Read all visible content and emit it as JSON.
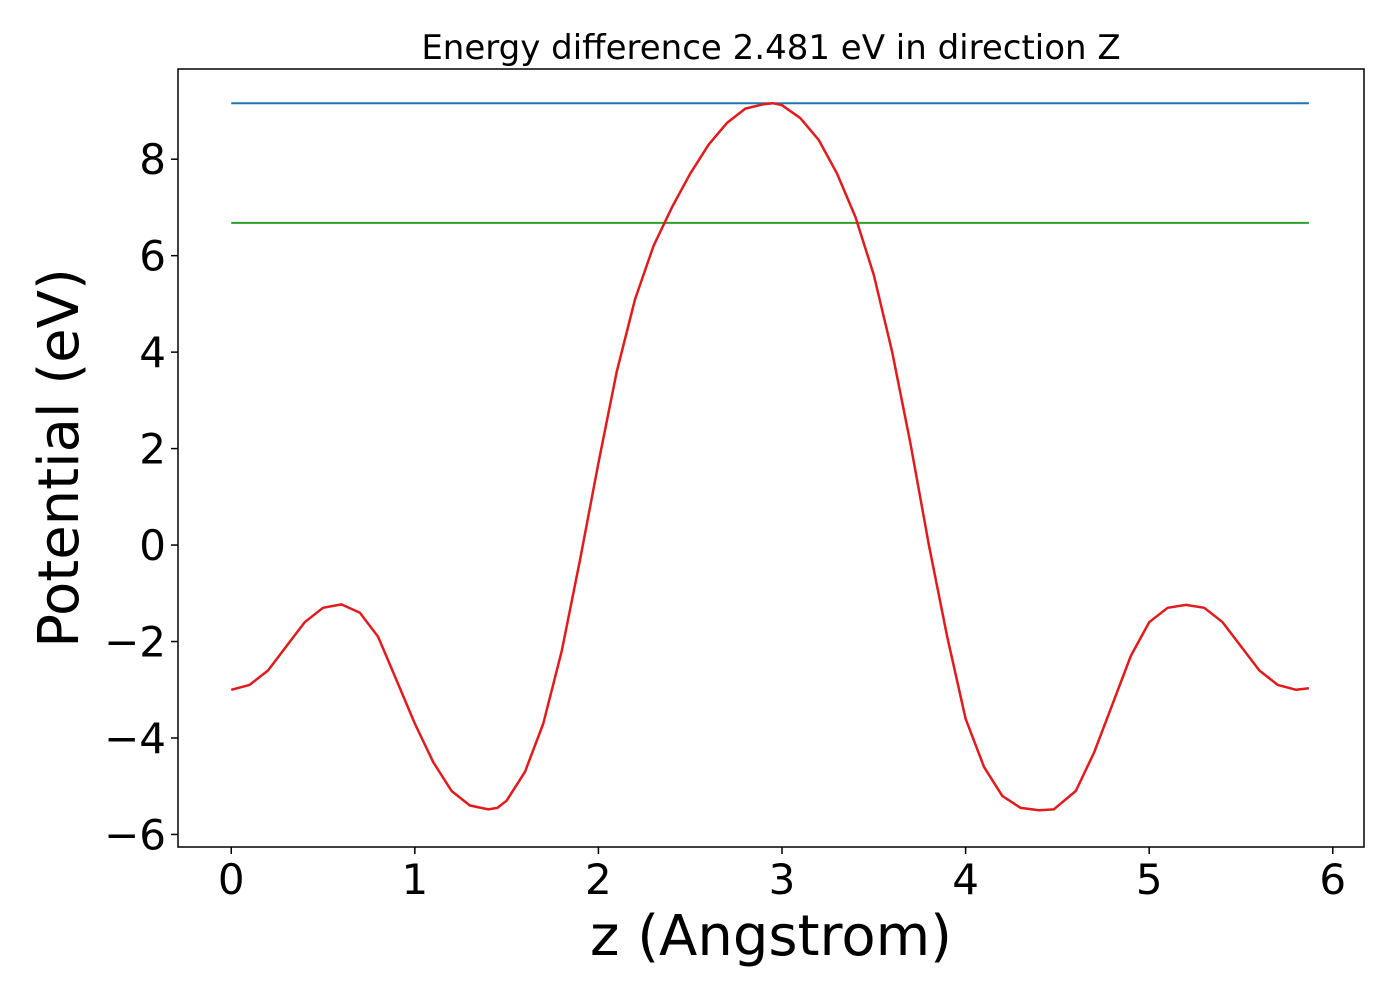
{
  "chart_data": {
    "type": "line",
    "title": "Energy difference 2.481 eV in direction Z",
    "xlabel": "z (Angstrom)",
    "ylabel": "Potential (eV)",
    "xlim": [
      -0.29,
      6.17
    ],
    "ylim": [
      -6.26,
      9.87
    ],
    "xticks": [
      0,
      1,
      2,
      3,
      4,
      5,
      6
    ],
    "yticks": [
      -6,
      -4,
      -2,
      0,
      2,
      4,
      6,
      8
    ],
    "xtick_labels": [
      "0",
      "1",
      "2",
      "3",
      "4",
      "5",
      "6"
    ],
    "ytick_labels": [
      "−6",
      "−4",
      "−2",
      "0",
      "2",
      "4",
      "6",
      "8"
    ],
    "grid": false,
    "legend": "none",
    "series": [
      {
        "color": "#1f77b4",
        "x": [
          0,
          5.87
        ],
        "y": [
          9.16,
          9.16
        ]
      },
      {
        "color": "#2ca02c",
        "x": [
          0,
          5.87
        ],
        "y": [
          6.68,
          6.68
        ]
      },
      {
        "color": "#e31a1c",
        "x": [
          0.0,
          0.1,
          0.2,
          0.3,
          0.4,
          0.5,
          0.6,
          0.7,
          0.8,
          0.9,
          1.0,
          1.1,
          1.2,
          1.3,
          1.4,
          1.45,
          1.5,
          1.6,
          1.7,
          1.8,
          1.9,
          2.0,
          2.1,
          2.2,
          2.3,
          2.4,
          2.5,
          2.6,
          2.7,
          2.8,
          2.9,
          2.95,
          3.0,
          3.1,
          3.2,
          3.3,
          3.4,
          3.5,
          3.6,
          3.7,
          3.8,
          3.9,
          4.0,
          4.1,
          4.2,
          4.3,
          4.4,
          4.48,
          4.6,
          4.7,
          4.8,
          4.9,
          5.0,
          5.1,
          5.2,
          5.3,
          5.4,
          5.5,
          5.6,
          5.7,
          5.8,
          5.87
        ],
        "y": [
          -3.0,
          -2.9,
          -2.6,
          -2.1,
          -1.6,
          -1.3,
          -1.23,
          -1.4,
          -1.9,
          -2.8,
          -3.7,
          -4.5,
          -5.1,
          -5.4,
          -5.48,
          -5.45,
          -5.3,
          -4.7,
          -3.7,
          -2.2,
          -0.3,
          1.7,
          3.6,
          5.1,
          6.2,
          7.0,
          7.7,
          8.3,
          8.75,
          9.05,
          9.14,
          9.16,
          9.12,
          8.85,
          8.4,
          7.7,
          6.8,
          5.6,
          4.0,
          2.1,
          0.0,
          -1.9,
          -3.6,
          -4.6,
          -5.2,
          -5.45,
          -5.5,
          -5.48,
          -5.1,
          -4.3,
          -3.3,
          -2.3,
          -1.6,
          -1.3,
          -1.24,
          -1.3,
          -1.6,
          -2.1,
          -2.6,
          -2.9,
          -3.0,
          -2.97
        ]
      }
    ]
  }
}
